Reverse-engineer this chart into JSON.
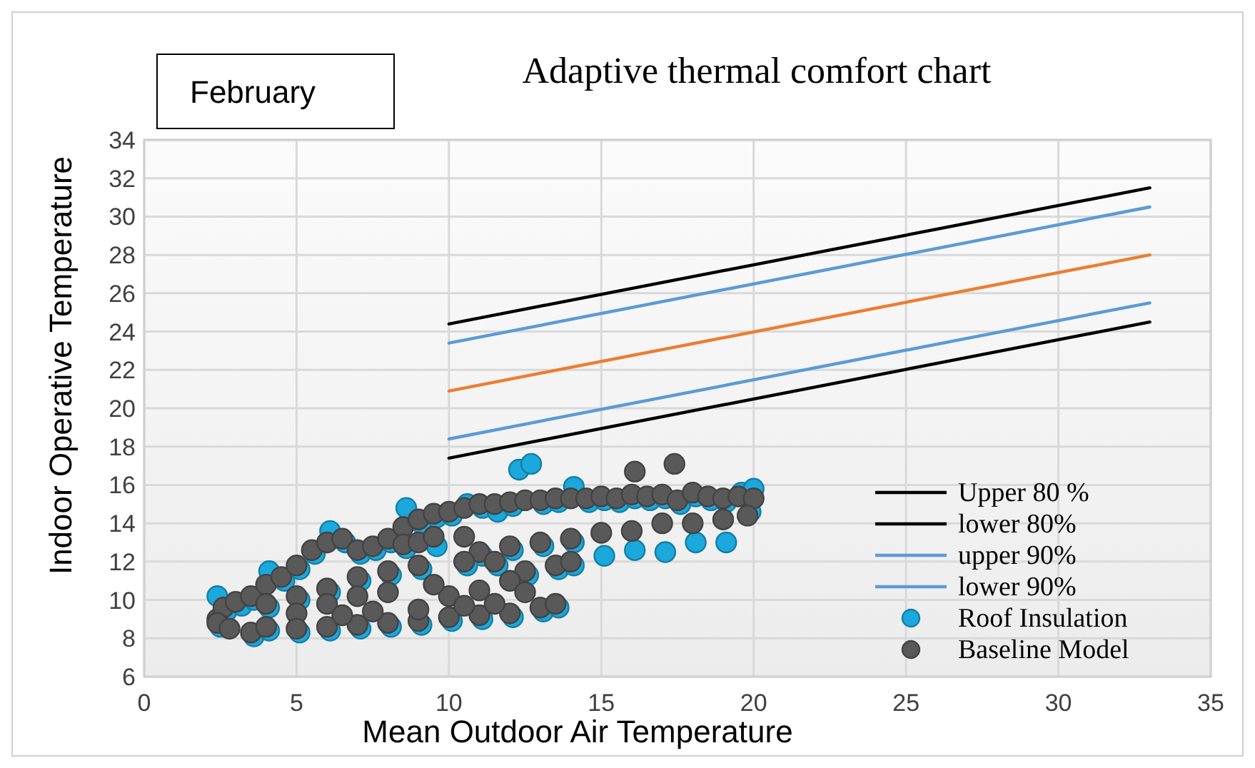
{
  "chart_data": {
    "type": "scatter",
    "title": "Adaptive thermal comfort chart",
    "xlabel": "Mean Outdoor Air Temperature",
    "ylabel": "Indoor Operative Temperature",
    "annotations": [
      "February"
    ],
    "xlim": [
      0,
      35
    ],
    "xticks": [
      0,
      5,
      10,
      15,
      20,
      25,
      30,
      35
    ],
    "ylim": [
      6,
      34
    ],
    "yticks": [
      6,
      8,
      10,
      12,
      14,
      16,
      18,
      20,
      22,
      24,
      26,
      28,
      30,
      32,
      34
    ],
    "grid": true,
    "legend": "bottom right",
    "series": [
      {
        "name": "Upper 80 %",
        "type": "line",
        "color": "#000000",
        "x": [
          10,
          33
        ],
        "values": [
          24.4,
          31.5
        ],
        "marker": "none"
      },
      {
        "name": "lower 80%",
        "type": "line",
        "color": "#000000",
        "x": [
          10,
          33
        ],
        "values": [
          17.4,
          24.5
        ],
        "marker": "none"
      },
      {
        "name": "upper 90%",
        "type": "line",
        "color": "#5b9bd5",
        "x": [
          10,
          33
        ],
        "values": [
          23.4,
          30.5
        ],
        "marker": "none"
      },
      {
        "name": "lower 90%",
        "type": "line",
        "color": "#5b9bd5",
        "x": [
          10,
          33
        ],
        "values": [
          18.4,
          25.5
        ],
        "marker": "none"
      },
      {
        "type": "line",
        "color": "#ed7d31",
        "x": [
          10,
          33
        ],
        "values": [
          20.9,
          28
        ],
        "marker": "none"
      },
      {
        "name": "Roof Insulation",
        "color": "#1ba8dc",
        "marker": "circle",
        "x": [
          2.4,
          2.7,
          3.2,
          3.6,
          4.1,
          4.6,
          5.1,
          5.6,
          6.1,
          6.6,
          7.1,
          7.6,
          8.1,
          8.6,
          9.1,
          9.6,
          10.1,
          10.6,
          11.1,
          11.6,
          12.1,
          12.3,
          12.7,
          13.1,
          13.6,
          14.1,
          14.6,
          15.1,
          15.6,
          16.1,
          16.6,
          17.1,
          17.6,
          18.1,
          18.6,
          19.1,
          19.6,
          20,
          8.6,
          9.6,
          11.1,
          12.1,
          13.1,
          14.1,
          15.1,
          16.1,
          17.1,
          18.1,
          19.1,
          19.9,
          4.1,
          5.1,
          6.1,
          7.1,
          8.1,
          9.1,
          10.6,
          11.6,
          12.6,
          13.6,
          14.1,
          3.6,
          4.1,
          5.1,
          6.1,
          7.1,
          8.1,
          9.1,
          10.1,
          11.1,
          12.1,
          13.1,
          13.6,
          2.5
        ],
        "values": [
          10.2,
          9.4,
          9.7,
          10,
          11.5,
          11,
          11.6,
          12.4,
          13.6,
          13,
          12.4,
          12.6,
          13,
          14.8,
          14,
          14.3,
          14.4,
          15,
          14.8,
          14.6,
          14.9,
          16.8,
          17.1,
          15,
          15.1,
          15.9,
          15.1,
          15.2,
          15.1,
          15.3,
          15.2,
          15.3,
          15,
          15.4,
          15.2,
          15.1,
          15.6,
          15.8,
          12.7,
          12.8,
          12.3,
          12.6,
          12.8,
          13,
          12.3,
          12.6,
          12.5,
          13,
          13,
          14.6,
          9.6,
          10,
          10.4,
          11,
          11.3,
          11.6,
          11.8,
          11.8,
          11.3,
          11.6,
          11.8,
          8.1,
          8.4,
          8.3,
          8.4,
          8.5,
          8.6,
          8.7,
          8.9,
          9,
          9.1,
          9.4,
          9.6,
          8.6
        ]
      },
      {
        "name": "Baseline Model",
        "color": "#595959",
        "marker": "circle",
        "x": [
          2.4,
          2.6,
          3,
          3.5,
          4,
          4.5,
          5,
          5.5,
          6,
          6.5,
          7,
          7.5,
          8,
          8.5,
          9,
          9.5,
          10,
          10.5,
          11,
          11.5,
          12,
          12.5,
          13,
          13.5,
          14,
          14.5,
          15,
          15.5,
          16,
          16.5,
          17,
          17.5,
          18,
          18.5,
          19,
          19.5,
          20,
          8.5,
          9,
          9.5,
          10.5,
          11,
          12,
          13,
          14,
          15,
          16,
          17,
          18,
          19,
          19.8,
          4,
          5,
          6,
          7,
          8,
          9,
          10.5,
          11.5,
          12.5,
          13.5,
          14,
          12,
          11,
          10,
          9.5,
          8,
          7,
          6,
          5,
          3.5,
          4,
          5,
          6,
          7,
          8,
          9,
          10,
          11,
          12,
          13,
          13.5,
          12.5,
          11.5,
          10.5,
          9,
          7.5,
          6.5,
          2.4,
          2.8,
          16.1,
          17.4
        ],
        "values": [
          9,
          9.6,
          9.9,
          10.2,
          10.8,
          11.2,
          11.8,
          12.6,
          13,
          13.2,
          12.6,
          12.8,
          13.2,
          13.8,
          14.2,
          14.5,
          14.6,
          14.8,
          15,
          15,
          15.1,
          15.2,
          15.2,
          15.3,
          15.3,
          15.3,
          15.4,
          15.3,
          15.5,
          15.4,
          15.5,
          15.2,
          15.6,
          15.4,
          15.3,
          15.4,
          15.3,
          12.9,
          13,
          13.3,
          13.3,
          12.5,
          12.8,
          13,
          13.2,
          13.5,
          13.6,
          14,
          14,
          14.2,
          14.4,
          9.8,
          10.2,
          10.6,
          11.2,
          11.5,
          11.8,
          12,
          12,
          11.5,
          11.8,
          12,
          11,
          10.5,
          10.2,
          10.8,
          10.4,
          10.2,
          9.8,
          9.3,
          8.3,
          8.6,
          8.5,
          8.6,
          8.7,
          8.8,
          8.9,
          9.1,
          9.2,
          9.3,
          9.6,
          9.8,
          10.4,
          9.8,
          9.7,
          9.5,
          9.4,
          9.2,
          8.8,
          8.5,
          16.7,
          17.1
        ]
      }
    ]
  }
}
